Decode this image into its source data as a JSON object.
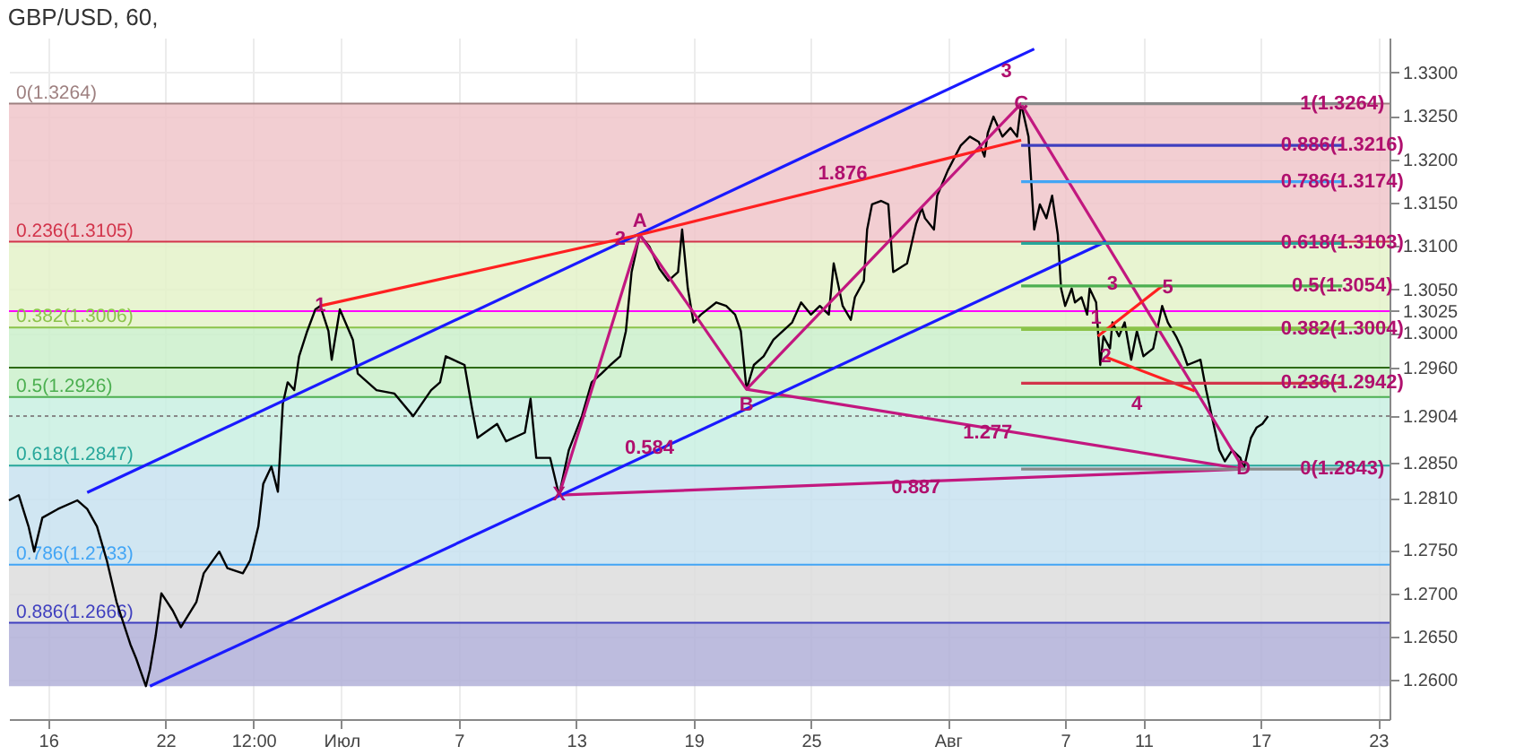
{
  "chart_data": {
    "type": "line",
    "title": "GBP/USD, 60,",
    "xlim": [
      "--06-14T00:00",
      "--08-23T14:00"
    ],
    "xticks": [
      {
        "value": "--06-16",
        "label": "16"
      },
      {
        "value": "--06-22",
        "label": "22"
      },
      {
        "value": "--06-26T12:00",
        "label": "12:00"
      },
      {
        "value": "--07-01",
        "label": "Июл"
      },
      {
        "value": "--07-07",
        "label": "7"
      },
      {
        "value": "--07-13",
        "label": "13"
      },
      {
        "value": "--07-19",
        "label": "19"
      },
      {
        "value": "--07-25",
        "label": "25"
      },
      {
        "value": "--08-01",
        "label": "Авг"
      },
      {
        "value": "--08-07",
        "label": "7"
      },
      {
        "value": "--08-11",
        "label": "11"
      },
      {
        "value": "--08-17",
        "label": "17"
      },
      {
        "value": "--08-23",
        "label": "23"
      }
    ],
    "ylim": [
      1.2555,
      1.334
    ],
    "yticks": [
      {
        "value": 1.26,
        "label": "1.2600"
      },
      {
        "value": 1.265,
        "label": "1.2650"
      },
      {
        "value": 1.27,
        "label": "1.2700"
      },
      {
        "value": 1.275,
        "label": "1.2750"
      },
      {
        "value": 1.281,
        "label": "1.2810"
      },
      {
        "value": 1.285,
        "label": "1.2850"
      },
      {
        "value": 1.2904,
        "label": "1.2904"
      },
      {
        "value": 1.296,
        "label": "1.2960"
      },
      {
        "value": 1.3,
        "label": "1.3000"
      },
      {
        "value": 1.3025,
        "label": "1.3025"
      },
      {
        "value": 1.305,
        "label": "1.3050"
      },
      {
        "value": 1.31,
        "label": "1.3100"
      },
      {
        "value": 1.315,
        "label": "1.3150"
      },
      {
        "value": 1.32,
        "label": "1.3200"
      },
      {
        "value": 1.325,
        "label": "1.3250"
      },
      {
        "value": 1.33,
        "label": "1.3300"
      }
    ],
    "grid": true,
    "bands": [
      {
        "axis": "y",
        "from": 1.3105,
        "to": 1.3264,
        "color": "#f0c6ca"
      },
      {
        "axis": "y",
        "from": 1.3006,
        "to": 1.3105,
        "color": "#e4f2c9"
      },
      {
        "axis": "y",
        "from": 1.2926,
        "to": 1.3006,
        "color": "#cbf0cb"
      },
      {
        "axis": "y",
        "from": 1.2847,
        "to": 1.2926,
        "color": "#c9f0e2"
      },
      {
        "axis": "y",
        "from": 1.2733,
        "to": 1.2847,
        "color": "#c8e2f0"
      },
      {
        "axis": "y",
        "from": 1.2666,
        "to": 1.2733,
        "color": "#dddddd"
      },
      {
        "axis": "y",
        "from": 1.2593,
        "to": 1.2666,
        "color": "#b1b0d8"
      }
    ],
    "ref_lines": [
      {
        "axis": "y",
        "value": 1.3264,
        "label": "0(1.3264)",
        "color": "#9e8080"
      },
      {
        "axis": "y",
        "value": 1.3105,
        "label": "0.236(1.3105)",
        "color": "#d2334a"
      },
      {
        "axis": "y",
        "value": 1.3006,
        "label": "0.382(1.3006)",
        "color": "#8bc34a"
      },
      {
        "axis": "y",
        "value": 1.2926,
        "label": "0.5(1.2926)",
        "color": "#4caf50"
      },
      {
        "axis": "y",
        "value": 1.2847,
        "label": "0.618(1.2847)",
        "color": "#26a69a"
      },
      {
        "axis": "y",
        "value": 1.2733,
        "label": "0.786(1.2733)",
        "color": "#42a5f5"
      },
      {
        "axis": "y",
        "value": 1.2666,
        "label": "0.886(1.2666)",
        "color": "#3f3fbf"
      },
      {
        "axis": "y",
        "value": 1.3025,
        "label": null,
        "color": "#ff00ff"
      },
      {
        "axis": "y",
        "value": 1.296,
        "label": null,
        "color": "#2e6b16"
      },
      {
        "axis": "y",
        "value": 1.2904,
        "label": null,
        "color": "#888888",
        "line_style": "dotted"
      }
    ],
    "series": [
      {
        "color": "#000000",
        "x": [
          "--06-14T00:00",
          "--06-14T12:00",
          "--06-15T00:00",
          "--06-15T07:00",
          "--06-15T17:00",
          "--06-16T12:00",
          "--06-17T12:00",
          "--06-18T00:00",
          "--06-18T12:00",
          "--06-19T00:00",
          "--06-19T12:00",
          "--06-20T05:00",
          "--06-20T12:00",
          "--06-21T00:00",
          "--06-21T05:00",
          "--06-21T12:00",
          "--06-21T19:00",
          "--06-22T09:00",
          "--06-22T19:00",
          "--06-23T14:00",
          "--06-23T23:00",
          "--06-24T18:00",
          "--06-25T04:00",
          "--06-25T23:00",
          "--06-26T08:00",
          "--06-26T18:00",
          "--06-27T00:00",
          "--06-27T10:00",
          "--06-27T18:00",
          "--06-28T00:00",
          "--06-28T06:00",
          "--06-28T14:00",
          "--06-28T20:00",
          "--06-29T06:00",
          "--06-29T16:00",
          "--06-29T22:00",
          "--06-30T08:00",
          "--06-30T12:00",
          "--06-30T22:00",
          "--07-01T14:00",
          "--07-01T20:00",
          "--07-02T19:00",
          "--07-03T17:00",
          "--07-04T16:00",
          "--07-05T14:00",
          "--07-06T01:00",
          "--07-06T08:00",
          "--07-06T17:00",
          "--07-07T07:00",
          "--07-07T16:00",
          "--07-07T23:00",
          "--07-08T23:00",
          "--07-09T10:00",
          "--07-10T09:00",
          "--07-10T16:00",
          "--07-10T23:00",
          "--07-11T16:00",
          "--07-12T03:00",
          "--07-12T15:00",
          "--07-13T07:00",
          "--07-13T19:00",
          "--07-14T07:00",
          "--07-14T18:00",
          "--07-15T06:00",
          "--07-15T13:00",
          "--07-15T20:00",
          "--07-16T06:00",
          "--07-16T18:00",
          "--07-17T06:00",
          "--07-17T17:00",
          "--07-18T05:00",
          "--07-18T10:00",
          "--07-18T17:00",
          "--07-19T00:00",
          "--07-19T09:00",
          "--07-20T04:00",
          "--07-20T16:00",
          "--07-21T03:00",
          "--07-21T10:00",
          "--07-21T17:00",
          "--07-22T02:00",
          "--07-22T14:00",
          "--07-23T02:00",
          "--07-24T01:00",
          "--07-24T12:00",
          "--07-25T00:00",
          "--07-25T11:00",
          "--07-25T22:00",
          "--07-26T04:00",
          "--07-26T15:00",
          "--07-27T01:00",
          "--07-27T06:00",
          "--07-27T17:00",
          "--07-27T21:00",
          "--07-28T03:00",
          "--07-28T14:00",
          "--07-28T23:00",
          "--07-29T05:00",
          "--07-29T12:00",
          "--07-29T22:00",
          "--07-30T09:00",
          "--07-30T16:00",
          "--07-30T20:00",
          "--07-31T07:00",
          "--07-31T11:00",
          "--08-01T00:00",
          "--08-01T16:00",
          "--08-02T03:00",
          "--08-02T14:00",
          "--08-02T21:00",
          "--08-03T01:00",
          "--08-03T08:00",
          "--08-03T19:00",
          "--08-04T05:00",
          "--08-04T13:00",
          "--08-04T18:00",
          "--08-05T03:00",
          "--08-05T10:00",
          "--08-05T17:00",
          "--08-06T01:00",
          "--08-06T08:00",
          "--08-06T15:00",
          "--08-06T19:00",
          "--08-07T00:00",
          "--08-07T08:00",
          "--08-07T12:00",
          "--08-07T20:00",
          "--08-08T03:00",
          "--08-08T06:00",
          "--08-08T14:00",
          "--08-08T19:00",
          "--08-08T23:00",
          "--08-09T07:00",
          "--08-09T10:00",
          "--08-09T18:00",
          "--08-10T01:00",
          "--08-10T09:00",
          "--08-10T16:00",
          "--08-11T00:00",
          "--08-11T12:00",
          "--08-11T23:00",
          "--08-12T06:00",
          "--08-12T16:00",
          "--08-12T23:00",
          "--08-13T06:00",
          "--08-13T22:00",
          "--08-14T05:00",
          "--08-14T14:00",
          "--08-14T21:00",
          "--08-15T04:00",
          "--08-15T13:00",
          "--08-15T23:00",
          "--08-16T03:00",
          "--08-16T12:00",
          "--08-16T19:00",
          "--08-17T02:00",
          "--08-17T09:00"
        ],
        "values": [
          1.2807,
          1.2813,
          1.2777,
          1.2748,
          1.2787,
          1.2797,
          1.2807,
          1.2797,
          1.2777,
          1.2738,
          1.269,
          1.2641,
          1.2625,
          1.2593,
          1.2612,
          1.2651,
          1.27,
          1.268,
          1.2661,
          1.269,
          1.2723,
          1.2748,
          1.2729,
          1.2723,
          1.2738,
          1.2777,
          1.2826,
          1.2846,
          1.2817,
          1.2918,
          1.2943,
          1.2934,
          1.2973,
          1.3002,
          1.3027,
          1.3031,
          1.3002,
          1.2969,
          1.3027,
          1.2992,
          1.2953,
          1.2934,
          1.293,
          1.2904,
          1.2934,
          1.2943,
          1.2973,
          1.2969,
          1.2963,
          1.2914,
          1.2879,
          1.2895,
          1.2875,
          1.2885,
          1.2924,
          1.2856,
          1.2856,
          1.2813,
          1.2865,
          1.2904,
          1.2943,
          1.2953,
          1.2963,
          1.2973,
          1.3002,
          1.307,
          1.3113,
          1.3099,
          1.3074,
          1.306,
          1.307,
          1.3119,
          1.3051,
          1.3012,
          1.3021,
          1.3035,
          1.3031,
          1.3021,
          1.3002,
          1.2935,
          1.2963,
          1.2973,
          1.2992,
          1.3012,
          1.3035,
          1.3021,
          1.3031,
          1.3021,
          1.308,
          1.3031,
          1.3015,
          1.3041,
          1.306,
          1.3119,
          1.3148,
          1.3152,
          1.3148,
          1.307,
          1.3074,
          1.308,
          1.3125,
          1.3144,
          1.3132,
          1.3119,
          1.3158,
          1.3187,
          1.3216,
          1.3226,
          1.322,
          1.3203,
          1.323,
          1.3249,
          1.3226,
          1.3236,
          1.3226,
          1.3264,
          1.3226,
          1.3119,
          1.3148,
          1.3132,
          1.3158,
          1.3113,
          1.3051,
          1.3031,
          1.3051,
          1.3035,
          1.3041,
          1.3021,
          1.3051,
          1.3035,
          1.2963,
          1.2996,
          1.2982,
          1.3012,
          1.2996,
          1.3012,
          1.2969,
          1.3002,
          1.2973,
          1.2982,
          1.3031,
          1.3012,
          1.2996,
          1.2982,
          1.2963,
          1.2969,
          1.2934,
          1.2895,
          1.2865,
          1.2852,
          1.2865,
          1.2856,
          1.2843,
          1.2879,
          1.2891,
          1.2895,
          1.2904
        ]
      },
      {
        "color": "#c2187f",
        "x": [
          "--07-12T03:00",
          "--07-16T06:00",
          "--07-21T17:00",
          "--08-04T18:00",
          "--08-16T03:00"
        ],
        "values": [
          1.2813,
          1.3113,
          1.2935,
          1.3264,
          1.2843
        ]
      },
      {
        "color": "#c2187f",
        "x": [
          "--07-12T03:00",
          "--08-16T03:00"
        ],
        "values": [
          1.2813,
          1.2843
        ]
      },
      {
        "color": "#c2187f",
        "x": [
          "--07-21T17:00",
          "--08-16T03:00"
        ],
        "values": [
          1.2935,
          1.2843
        ]
      },
      {
        "color": "#1a1aff",
        "x": [
          "--06-18T00:00",
          "--08-05T10:00"
        ],
        "values": [
          1.2816,
          1.3327
        ]
      },
      {
        "color": "#1a1aff",
        "x": [
          "--06-21T05:00",
          "--08-09T02:00"
        ],
        "values": [
          1.2593,
          1.3105
        ]
      },
      {
        "color": "#ff2020",
        "x": [
          "--06-29T22:00",
          "--07-16T06:00",
          "--08-04T18:00"
        ],
        "values": [
          1.3031,
          1.3113,
          1.3222
        ]
      },
      {
        "color": "#ff2020",
        "x": [
          "--08-08T16:00",
          "--08-11T23:00"
        ],
        "values": [
          1.2996,
          1.3054
        ]
      },
      {
        "color": "#ff2020",
        "x": [
          "--08-09T02:00",
          "--08-13T15:00"
        ],
        "values": [
          1.2972,
          1.2933
        ]
      },
      {
        "color": "#888888",
        "x": [
          "--08-04T18:00",
          "--08-21T04:00"
        ],
        "values": [
          1.3264,
          1.3264
        ]
      },
      {
        "color": "#3f3fbf",
        "x": [
          "--08-04T18:00",
          "--08-21T04:00"
        ],
        "values": [
          1.3216,
          1.3216
        ]
      },
      {
        "color": "#42a5f5",
        "x": [
          "--08-04T18:00",
          "--08-21T04:00"
        ],
        "values": [
          1.3174,
          1.3174
        ]
      },
      {
        "color": "#26a69a",
        "x": [
          "--08-04T18:00",
          "--08-21T04:00"
        ],
        "values": [
          1.3103,
          1.3103
        ]
      },
      {
        "color": "#4caf50",
        "x": [
          "--08-04T18:00",
          "--08-21T04:00"
        ],
        "values": [
          1.3054,
          1.3054
        ]
      },
      {
        "color": "#8bc34a",
        "x": [
          "--08-04T18:00",
          "--08-21T04:00"
        ],
        "values": [
          1.3004,
          1.3004
        ]
      },
      {
        "color": "#d2334a",
        "x": [
          "--08-04T18:00",
          "--08-21T04:00"
        ],
        "values": [
          1.2942,
          1.2942
        ]
      },
      {
        "color": "#888888",
        "x": [
          "--08-04T18:00",
          "--08-21T04:00"
        ],
        "values": [
          1.2843,
          1.2843
        ]
      }
    ],
    "annotations": [
      {
        "text": "1",
        "x": "--06-29T22:00",
        "y": 1.3031
      },
      {
        "text": "2",
        "x": "--07-15T06:00",
        "y": 1.3108
      },
      {
        "text": "3",
        "x": "--08-04T00:00",
        "y": 1.3301
      },
      {
        "text": "X",
        "x": "--07-12T03:00",
        "y": 1.2813
      },
      {
        "text": "A",
        "x": "--07-16T06:00",
        "y": 1.3128
      },
      {
        "text": "B",
        "x": "--07-21T17:00",
        "y": 1.2916
      },
      {
        "text": "C",
        "x": "--08-04T18:00",
        "y": 1.3264
      },
      {
        "text": "D",
        "x": "--08-16T03:00",
        "y": 1.2843
      },
      {
        "text": "0.584",
        "x": "--07-16T18:00",
        "y": 1.2867
      },
      {
        "text": "1.876",
        "x": "--07-26T15:00",
        "y": 1.3183
      },
      {
        "text": "1.277",
        "x": "--08-03T01:00",
        "y": 1.2885
      },
      {
        "text": "0.887",
        "x": "--07-30T09:00",
        "y": 1.2822
      },
      {
        "text": "1",
        "x": "--08-08T14:00",
        "y": 1.3017
      },
      {
        "text": "2",
        "x": "--08-09T02:00",
        "y": 1.2972
      },
      {
        "text": "3",
        "x": "--08-09T10:00",
        "y": 1.3056
      },
      {
        "text": "4",
        "x": "--08-10T16:00",
        "y": 1.2918
      },
      {
        "text": "5",
        "x": "--08-12T06:00",
        "y": 1.3052
      },
      {
        "text": "1(1.3264)",
        "x": "--08-21T04:00",
        "y": 1.3264
      },
      {
        "text": "0.886(1.3216)",
        "x": "--08-21T04:00",
        "y": 1.3216
      },
      {
        "text": "0.786(1.3174)",
        "x": "--08-21T04:00",
        "y": 1.3174
      },
      {
        "text": "0.618(1.3103)",
        "x": "--08-21T04:00",
        "y": 1.3103
      },
      {
        "text": "0.5(1.3054)",
        "x": "--08-21T04:00",
        "y": 1.3054
      },
      {
        "text": "0.382(1.3004)",
        "x": "--08-21T04:00",
        "y": 1.3004
      },
      {
        "text": "0.236(1.2942)",
        "x": "--08-21T04:00",
        "y": 1.2942
      },
      {
        "text": "0(1.2843)",
        "x": "--08-21T04:00",
        "y": 1.2843
      }
    ]
  }
}
